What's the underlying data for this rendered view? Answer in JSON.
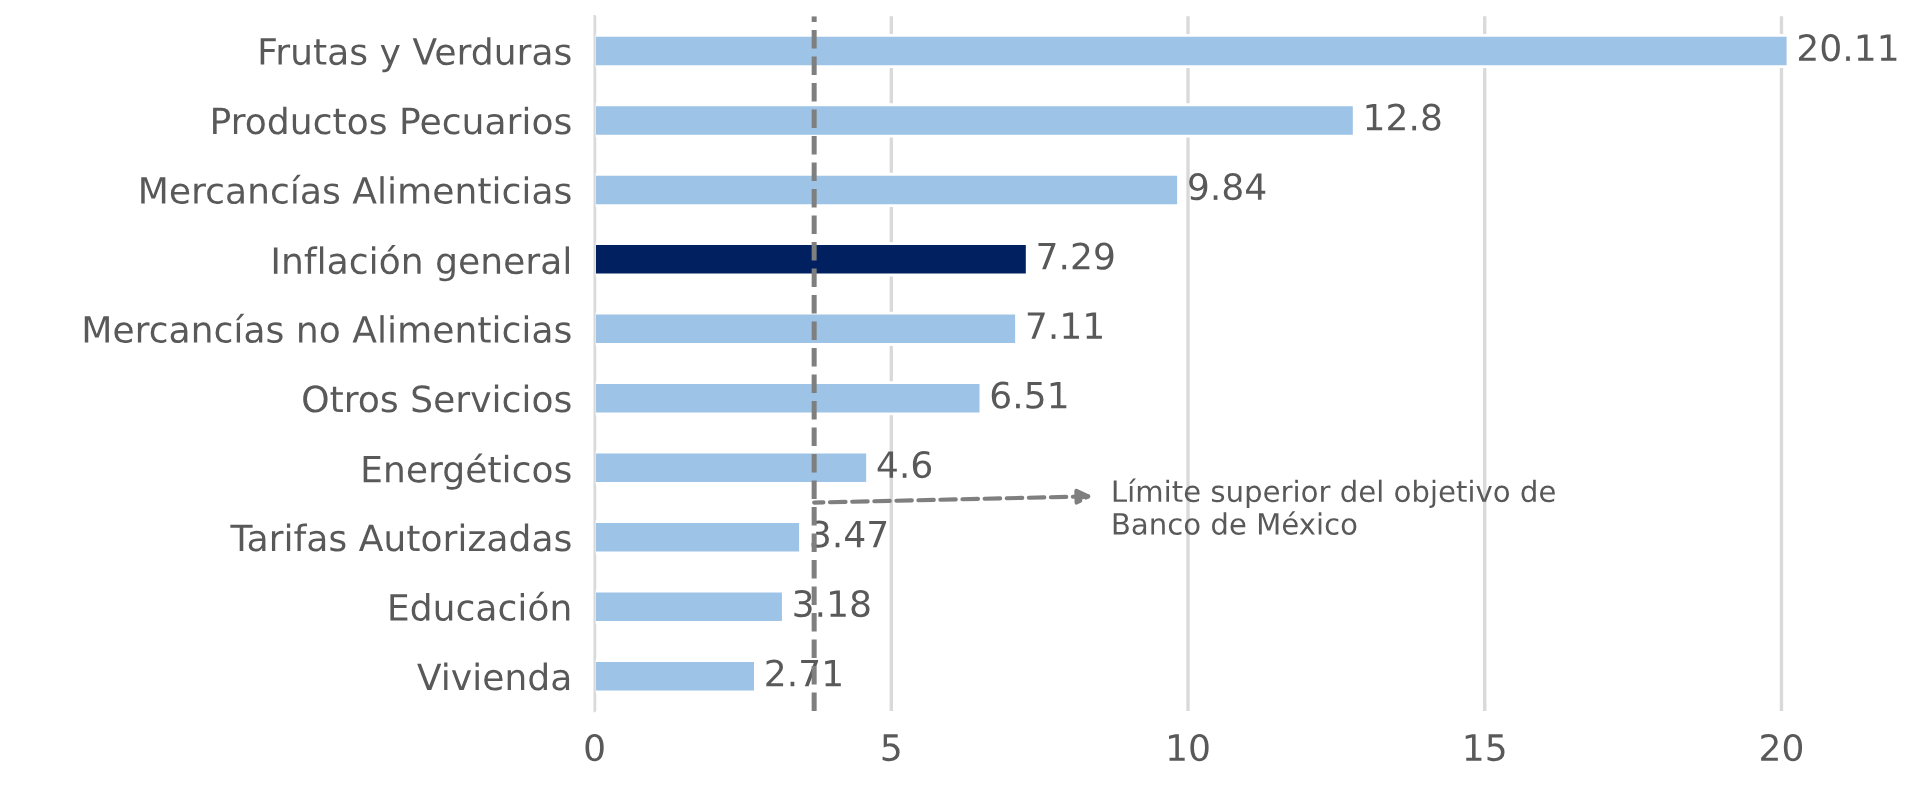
{
  "chart_data": {
    "type": "bar",
    "orientation": "horizontal",
    "categories": [
      "Frutas y Verduras",
      "Productos Pecuarios",
      "Mercancías Alimenticias",
      "Inflación general",
      "Mercancías no Alimenticias",
      "Otros Servicios",
      "Energéticos",
      "Tarifas Autorizadas",
      "Educación",
      "Vivienda"
    ],
    "values": [
      20.11,
      12.8,
      9.84,
      7.29,
      7.11,
      6.51,
      4.6,
      3.47,
      3.18,
      2.71
    ],
    "colors": [
      "#9dc3e6",
      "#9dc3e6",
      "#9dc3e6",
      "#002060",
      "#9dc3e6",
      "#9dc3e6",
      "#9dc3e6",
      "#9dc3e6",
      "#9dc3e6",
      "#9dc3e6"
    ],
    "xlim": [
      0,
      20.2
    ],
    "xticks": [
      0,
      5,
      10,
      15,
      20
    ],
    "grid": "x",
    "data_labels": true,
    "ref_lines": [
      {
        "axis": "x",
        "value": 3.7,
        "label": "Límite superior del objetivo de\nBanco de México",
        "color": "#7f7f7f",
        "line_style": "dashed"
      }
    ]
  }
}
